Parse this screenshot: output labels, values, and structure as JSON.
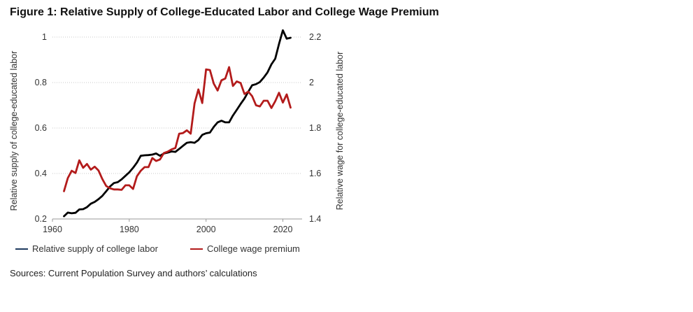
{
  "title": "Figure 1: Relative Supply of College-Educated Labor and College Wage Premium",
  "source": "Sources: Current Population Survey and authors’ calculations",
  "chart_data": {
    "type": "line",
    "xlim": [
      1960,
      2025
    ],
    "x_ticks": [
      "1960",
      "1980",
      "2000",
      "2020"
    ],
    "left_axis": {
      "label": "Relative supply of college-educated labor",
      "ylim": [
        0.2,
        1.0
      ],
      "ticks": [
        "0.2",
        "0.4",
        "0.6",
        "0.8",
        "1"
      ]
    },
    "right_axis": {
      "label": "Relative wage for college-educated labor",
      "ylim": [
        1.4,
        2.2
      ],
      "ticks": [
        "1.4",
        "1.6",
        "1.8",
        "2",
        "2.2"
      ]
    },
    "grid": true,
    "legend_position": "bottom",
    "series": [
      {
        "name": "Relative supply of college labor",
        "axis": "left",
        "color": "#000000",
        "legend_color": "#1f3a5f",
        "x": [
          1963,
          1964,
          1965,
          1966,
          1967,
          1968,
          1969,
          1970,
          1971,
          1972,
          1973,
          1974,
          1975,
          1976,
          1977,
          1978,
          1979,
          1980,
          1981,
          1982,
          1983,
          1984,
          1985,
          1986,
          1987,
          1988,
          1989,
          1990,
          1991,
          1992,
          1993,
          1994,
          1995,
          1996,
          1997,
          1998,
          1999,
          2000,
          2001,
          2002,
          2003,
          2004,
          2005,
          2006,
          2007,
          2008,
          2009,
          2010,
          2011,
          2012,
          2013,
          2014,
          2015,
          2016,
          2017,
          2018,
          2019,
          2020,
          2021,
          2022
        ],
        "y": [
          0.212,
          0.228,
          0.225,
          0.227,
          0.242,
          0.243,
          0.252,
          0.267,
          0.275,
          0.287,
          0.302,
          0.322,
          0.343,
          0.358,
          0.362,
          0.374,
          0.39,
          0.405,
          0.425,
          0.448,
          0.478,
          0.48,
          0.481,
          0.483,
          0.488,
          0.478,
          0.488,
          0.492,
          0.497,
          0.495,
          0.508,
          0.522,
          0.535,
          0.538,
          0.535,
          0.547,
          0.57,
          0.577,
          0.58,
          0.605,
          0.625,
          0.632,
          0.625,
          0.625,
          0.655,
          0.68,
          0.706,
          0.73,
          0.76,
          0.788,
          0.793,
          0.802,
          0.822,
          0.845,
          0.88,
          0.905,
          0.97,
          1.03,
          0.993,
          0.997
        ]
      },
      {
        "name": "College wage premium",
        "axis": "right",
        "color": "#b31b1b",
        "x": [
          1963,
          1964,
          1965,
          1966,
          1967,
          1968,
          1969,
          1970,
          1971,
          1972,
          1973,
          1974,
          1975,
          1976,
          1977,
          1978,
          1979,
          1980,
          1981,
          1982,
          1983,
          1984,
          1985,
          1986,
          1987,
          1988,
          1989,
          1990,
          1991,
          1992,
          1993,
          1994,
          1995,
          1996,
          1997,
          1998,
          1999,
          2000,
          2001,
          2002,
          2003,
          2004,
          2005,
          2006,
          2007,
          2008,
          2009,
          2010,
          2011,
          2012,
          2013,
          2014,
          2015,
          2016,
          2017,
          2018,
          2019,
          2020,
          2021,
          2022
        ],
        "y": [
          1.522,
          1.58,
          1.612,
          1.602,
          1.658,
          1.625,
          1.642,
          1.617,
          1.63,
          1.613,
          1.575,
          1.545,
          1.535,
          1.53,
          1.53,
          1.528,
          1.548,
          1.548,
          1.532,
          1.588,
          1.612,
          1.628,
          1.628,
          1.668,
          1.655,
          1.662,
          1.69,
          1.696,
          1.706,
          1.712,
          1.775,
          1.778,
          1.79,
          1.775,
          1.908,
          1.97,
          1.91,
          2.058,
          2.055,
          1.995,
          1.965,
          2.01,
          2.018,
          2.068,
          1.985,
          2.005,
          1.998,
          1.95,
          1.96,
          1.94,
          1.9,
          1.895,
          1.92,
          1.92,
          1.888,
          1.918,
          1.955,
          1.912,
          1.948,
          1.89
        ]
      }
    ]
  }
}
